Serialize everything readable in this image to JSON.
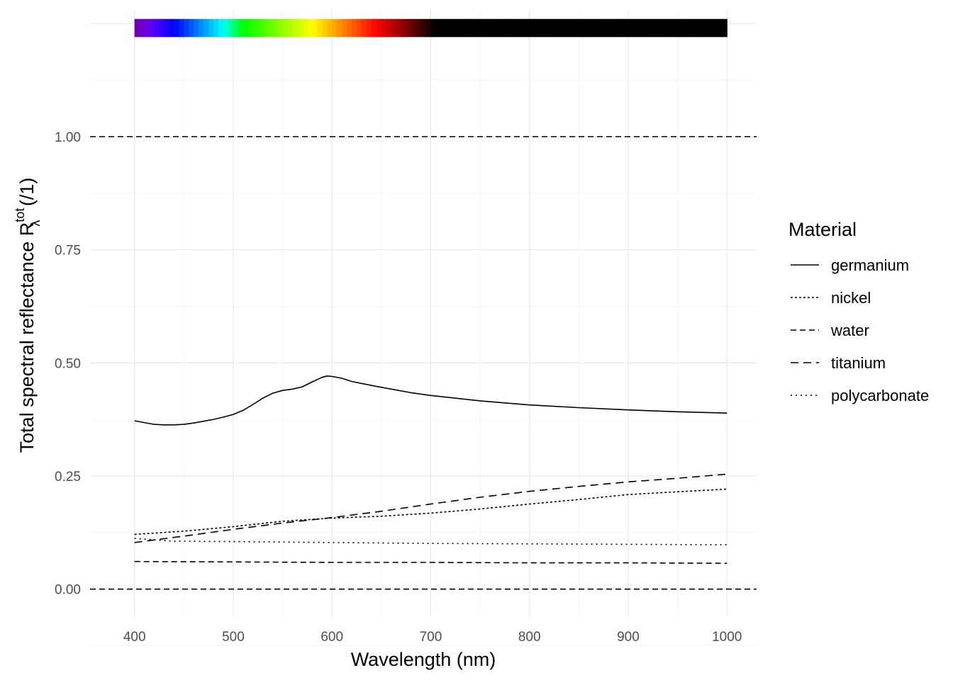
{
  "chart_data": {
    "type": "line",
    "xlabel": "Wavelength (nm)",
    "ylabel": {
      "main": "Total  spectral  reflectance  R",
      "subscript": "λ",
      "superscript": "tot",
      "unit": "  (/1)"
    },
    "xlim": [
      355,
      1030
    ],
    "ylim": [
      -0.06,
      1.28
    ],
    "x_ticks": [
      400,
      500,
      600,
      700,
      800,
      900,
      1000
    ],
    "y_ticks": [
      0.0,
      0.25,
      0.5,
      0.75,
      1.0
    ],
    "x_tick_labels": [
      "400",
      "500",
      "600",
      "700",
      "800",
      "900",
      "1000"
    ],
    "y_tick_labels": [
      "0.00",
      "0.25",
      "0.50",
      "0.75",
      "1.00"
    ],
    "grid": true,
    "reference_lines": [
      0.0,
      1.0
    ],
    "color_bar": {
      "y_range": [
        1.22,
        1.26
      ],
      "x_range": [
        400,
        1000
      ]
    },
    "legend": {
      "title": "Material",
      "placement": "right",
      "entries": [
        {
          "label": "germanium",
          "linestyle": "solid"
        },
        {
          "label": "nickel",
          "linestyle": "dotted-short"
        },
        {
          "label": "water",
          "linestyle": "dashed"
        },
        {
          "label": "titanium",
          "linestyle": "long-dashed"
        },
        {
          "label": "polycarbonate",
          "linestyle": "dotted"
        }
      ]
    },
    "series": [
      {
        "name": "germanium",
        "linestyle": "solid",
        "x": [
          400,
          410,
          420,
          430,
          440,
          450,
          460,
          470,
          480,
          490,
          500,
          510,
          520,
          530,
          540,
          550,
          560,
          570,
          580,
          590,
          595,
          600,
          610,
          620,
          640,
          660,
          680,
          700,
          750,
          800,
          850,
          900,
          950,
          1000
        ],
        "y": [
          0.372,
          0.368,
          0.364,
          0.363,
          0.363,
          0.364,
          0.367,
          0.371,
          0.375,
          0.38,
          0.386,
          0.395,
          0.408,
          0.422,
          0.433,
          0.439,
          0.442,
          0.447,
          0.458,
          0.468,
          0.471,
          0.47,
          0.466,
          0.459,
          0.45,
          0.442,
          0.434,
          0.428,
          0.416,
          0.407,
          0.401,
          0.396,
          0.392,
          0.389
        ]
      },
      {
        "name": "nickel",
        "linestyle": "dotted-short",
        "x": [
          400,
          450,
          500,
          550,
          600,
          650,
          700,
          750,
          800,
          850,
          900,
          950,
          1000
        ],
        "y": [
          0.121,
          0.128,
          0.138,
          0.15,
          0.157,
          0.161,
          0.168,
          0.177,
          0.188,
          0.198,
          0.209,
          0.215,
          0.221
        ]
      },
      {
        "name": "water",
        "linestyle": "dashed",
        "x": [
          400,
          500,
          600,
          700,
          800,
          900,
          1000
        ],
        "y": [
          0.061,
          0.06,
          0.059,
          0.059,
          0.058,
          0.058,
          0.057
        ]
      },
      {
        "name": "titanium",
        "linestyle": "long-dashed",
        "x": [
          400,
          450,
          500,
          550,
          600,
          650,
          700,
          750,
          800,
          850,
          900,
          950,
          1000
        ],
        "y": [
          0.103,
          0.117,
          0.132,
          0.146,
          0.158,
          0.172,
          0.188,
          0.203,
          0.216,
          0.227,
          0.237,
          0.245,
          0.254
        ]
      },
      {
        "name": "polycarbonate",
        "linestyle": "dotted",
        "x": [
          400,
          440,
          500,
          600,
          700,
          800,
          900,
          1000
        ],
        "y": [
          0.112,
          0.106,
          0.105,
          0.103,
          0.101,
          0.1,
          0.099,
          0.098
        ]
      }
    ]
  }
}
